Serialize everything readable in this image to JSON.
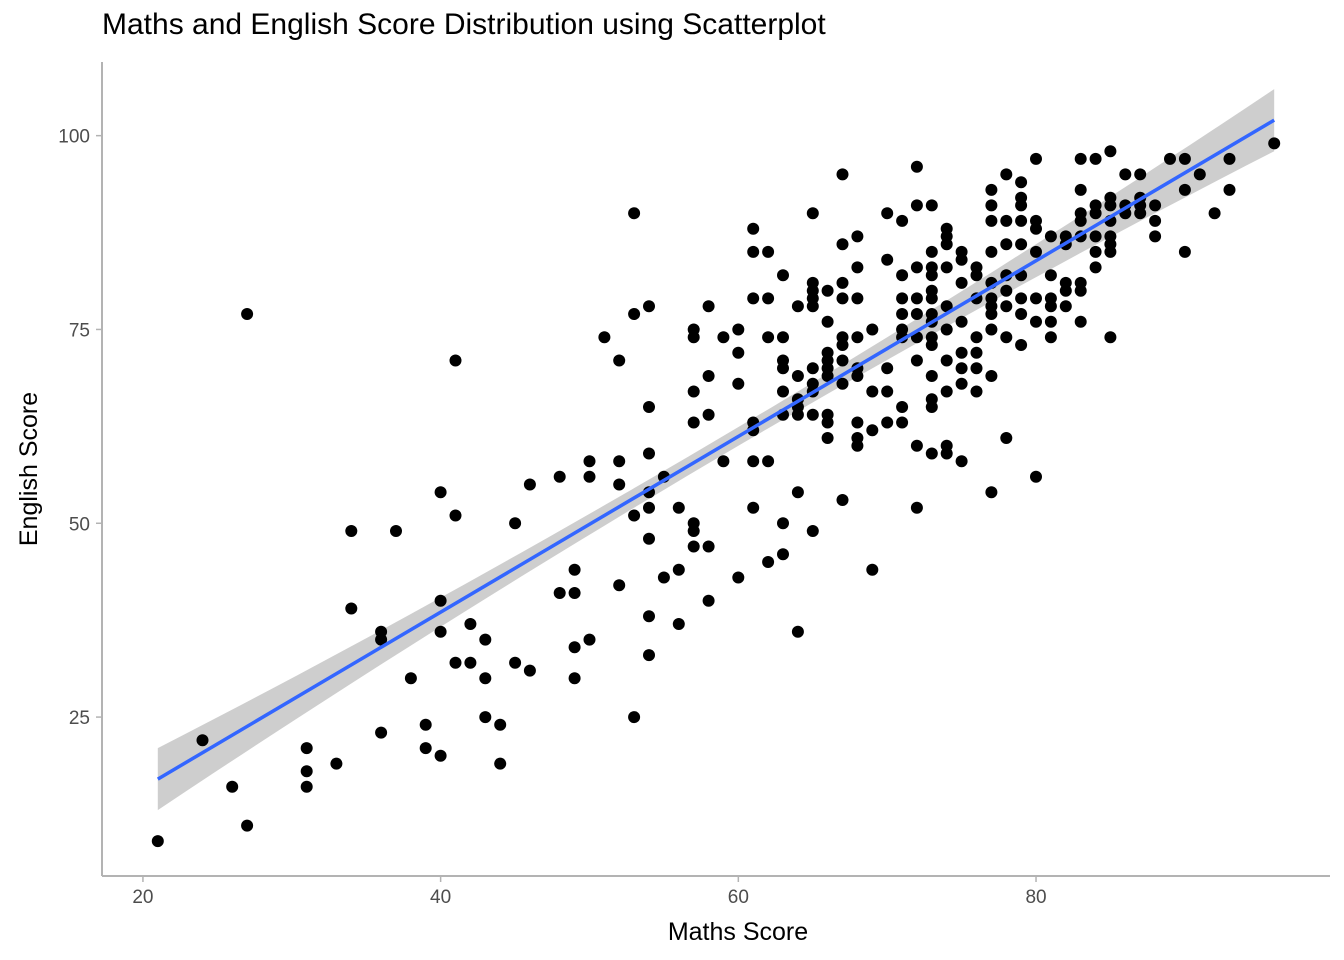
{
  "chart_data": {
    "type": "scatter",
    "title": "Maths and English Score Distribution using Scatterplot",
    "xlabel": "Maths Score",
    "ylabel": "English Score",
    "xlim": [
      17.25,
      99.75
    ],
    "ylim": [
      4.5,
      109.5
    ],
    "x_ticks": [
      20,
      40,
      60,
      80
    ],
    "y_ticks": [
      25,
      50,
      75,
      100
    ],
    "grid": false,
    "point_color": "#000000",
    "trend_line": {
      "method": "linear fit with confidence band",
      "color": "#3366FF",
      "band_color": "#BEBEBE",
      "x_start": 21,
      "y_start": 17,
      "x_end": 96,
      "y_end": 102,
      "band_halfwidth_ends": 4,
      "band_halfwidth_center": 1.2
    },
    "points": [
      [
        21,
        9
      ],
      [
        24,
        22
      ],
      [
        26,
        16
      ],
      [
        27,
        11
      ],
      [
        27,
        77
      ],
      [
        31,
        21
      ],
      [
        31,
        18
      ],
      [
        31,
        16
      ],
      [
        33,
        19
      ],
      [
        34,
        49
      ],
      [
        34,
        39
      ],
      [
        36,
        36
      ],
      [
        36,
        35
      ],
      [
        36,
        23
      ],
      [
        37,
        49
      ],
      [
        38,
        30
      ],
      [
        39,
        24
      ],
      [
        39,
        21
      ],
      [
        40,
        54
      ],
      [
        40,
        40
      ],
      [
        40,
        36
      ],
      [
        40,
        20
      ],
      [
        41,
        71
      ],
      [
        41,
        51
      ],
      [
        41,
        32
      ],
      [
        42,
        37
      ],
      [
        42,
        32
      ],
      [
        43,
        35
      ],
      [
        43,
        30
      ],
      [
        43,
        25
      ],
      [
        44,
        24
      ],
      [
        44,
        19
      ],
      [
        45,
        50
      ],
      [
        45,
        32
      ],
      [
        46,
        55
      ],
      [
        46,
        31
      ],
      [
        48,
        56
      ],
      [
        48,
        41
      ],
      [
        49,
        44
      ],
      [
        49,
        41
      ],
      [
        49,
        34
      ],
      [
        49,
        30
      ],
      [
        50,
        58
      ],
      [
        50,
        56
      ],
      [
        50,
        35
      ],
      [
        51,
        74
      ],
      [
        52,
        71
      ],
      [
        52,
        58
      ],
      [
        52,
        55
      ],
      [
        52,
        42
      ],
      [
        53,
        90
      ],
      [
        53,
        77
      ],
      [
        53,
        51
      ],
      [
        53,
        25
      ],
      [
        54,
        78
      ],
      [
        54,
        65
      ],
      [
        54,
        59
      ],
      [
        54,
        54
      ],
      [
        54,
        52
      ],
      [
        54,
        48
      ],
      [
        54,
        38
      ],
      [
        54,
        33
      ],
      [
        55,
        56
      ],
      [
        55,
        43
      ],
      [
        56,
        52
      ],
      [
        56,
        44
      ],
      [
        56,
        37
      ],
      [
        57,
        75
      ],
      [
        57,
        74
      ],
      [
        57,
        67
      ],
      [
        57,
        63
      ],
      [
        57,
        50
      ],
      [
        57,
        49
      ],
      [
        57,
        47
      ],
      [
        58,
        78
      ],
      [
        58,
        69
      ],
      [
        58,
        64
      ],
      [
        58,
        47
      ],
      [
        58,
        40
      ],
      [
        59,
        74
      ],
      [
        59,
        58
      ],
      [
        60,
        75
      ],
      [
        60,
        72
      ],
      [
        60,
        68
      ],
      [
        60,
        43
      ],
      [
        61,
        88
      ],
      [
        61,
        85
      ],
      [
        61,
        79
      ],
      [
        61,
        63
      ],
      [
        61,
        62
      ],
      [
        61,
        58
      ],
      [
        61,
        52
      ],
      [
        62,
        85
      ],
      [
        62,
        79
      ],
      [
        62,
        74
      ],
      [
        62,
        58
      ],
      [
        62,
        45
      ],
      [
        63,
        82
      ],
      [
        63,
        74
      ],
      [
        63,
        71
      ],
      [
        63,
        70
      ],
      [
        63,
        67
      ],
      [
        63,
        64
      ],
      [
        63,
        50
      ],
      [
        63,
        46
      ],
      [
        64,
        78
      ],
      [
        64,
        69
      ],
      [
        64,
        66
      ],
      [
        64,
        65
      ],
      [
        64,
        64
      ],
      [
        64,
        54
      ],
      [
        64,
        36
      ],
      [
        65,
        90
      ],
      [
        65,
        81
      ],
      [
        65,
        80
      ],
      [
        65,
        79
      ],
      [
        65,
        78
      ],
      [
        65,
        70
      ],
      [
        65,
        68
      ],
      [
        65,
        67
      ],
      [
        65,
        64
      ],
      [
        65,
        49
      ],
      [
        66,
        80
      ],
      [
        66,
        76
      ],
      [
        66,
        72
      ],
      [
        66,
        71
      ],
      [
        66,
        70
      ],
      [
        66,
        69
      ],
      [
        66,
        64
      ],
      [
        66,
        63
      ],
      [
        66,
        61
      ],
      [
        67,
        95
      ],
      [
        67,
        86
      ],
      [
        67,
        81
      ],
      [
        67,
        79
      ],
      [
        67,
        74
      ],
      [
        67,
        73
      ],
      [
        67,
        71
      ],
      [
        67,
        68
      ],
      [
        67,
        53
      ],
      [
        68,
        87
      ],
      [
        68,
        83
      ],
      [
        68,
        79
      ],
      [
        68,
        74
      ],
      [
        68,
        70
      ],
      [
        68,
        69
      ],
      [
        68,
        63
      ],
      [
        68,
        61
      ],
      [
        68,
        60
      ],
      [
        69,
        75
      ],
      [
        69,
        67
      ],
      [
        69,
        62
      ],
      [
        69,
        44
      ],
      [
        70,
        90
      ],
      [
        70,
        84
      ],
      [
        70,
        70
      ],
      [
        70,
        67
      ],
      [
        70,
        63
      ],
      [
        71,
        89
      ],
      [
        71,
        82
      ],
      [
        71,
        79
      ],
      [
        71,
        77
      ],
      [
        71,
        75
      ],
      [
        71,
        74
      ],
      [
        71,
        65
      ],
      [
        71,
        63
      ],
      [
        72,
        96
      ],
      [
        72,
        91
      ],
      [
        72,
        83
      ],
      [
        72,
        79
      ],
      [
        72,
        77
      ],
      [
        72,
        74
      ],
      [
        72,
        71
      ],
      [
        72,
        60
      ],
      [
        72,
        52
      ],
      [
        73,
        91
      ],
      [
        73,
        85
      ],
      [
        73,
        83
      ],
      [
        73,
        82
      ],
      [
        73,
        80
      ],
      [
        73,
        79
      ],
      [
        73,
        77
      ],
      [
        73,
        76
      ],
      [
        73,
        74
      ],
      [
        73,
        73
      ],
      [
        73,
        69
      ],
      [
        73,
        66
      ],
      [
        73,
        65
      ],
      [
        73,
        59
      ],
      [
        74,
        88
      ],
      [
        74,
        87
      ],
      [
        74,
        86
      ],
      [
        74,
        83
      ],
      [
        74,
        78
      ],
      [
        74,
        75
      ],
      [
        74,
        71
      ],
      [
        74,
        67
      ],
      [
        74,
        60
      ],
      [
        74,
        59
      ],
      [
        75,
        85
      ],
      [
        75,
        84
      ],
      [
        75,
        81
      ],
      [
        75,
        76
      ],
      [
        75,
        72
      ],
      [
        75,
        70
      ],
      [
        75,
        68
      ],
      [
        75,
        58
      ],
      [
        76,
        83
      ],
      [
        76,
        82
      ],
      [
        76,
        79
      ],
      [
        76,
        74
      ],
      [
        76,
        72
      ],
      [
        76,
        70
      ],
      [
        76,
        67
      ],
      [
        77,
        93
      ],
      [
        77,
        91
      ],
      [
        77,
        89
      ],
      [
        77,
        85
      ],
      [
        77,
        81
      ],
      [
        77,
        79
      ],
      [
        77,
        78
      ],
      [
        77,
        77
      ],
      [
        77,
        75
      ],
      [
        77,
        69
      ],
      [
        77,
        54
      ],
      [
        78,
        95
      ],
      [
        78,
        89
      ],
      [
        78,
        86
      ],
      [
        78,
        82
      ],
      [
        78,
        80
      ],
      [
        78,
        78
      ],
      [
        78,
        74
      ],
      [
        78,
        61
      ],
      [
        79,
        94
      ],
      [
        79,
        92
      ],
      [
        79,
        91
      ],
      [
        79,
        89
      ],
      [
        79,
        86
      ],
      [
        79,
        82
      ],
      [
        79,
        79
      ],
      [
        79,
        77
      ],
      [
        79,
        73
      ],
      [
        80,
        97
      ],
      [
        80,
        89
      ],
      [
        80,
        88
      ],
      [
        80,
        85
      ],
      [
        80,
        79
      ],
      [
        80,
        76
      ],
      [
        80,
        56
      ],
      [
        81,
        87
      ],
      [
        81,
        82
      ],
      [
        81,
        79
      ],
      [
        81,
        78
      ],
      [
        81,
        76
      ],
      [
        81,
        74
      ],
      [
        82,
        87
      ],
      [
        82,
        86
      ],
      [
        82,
        81
      ],
      [
        82,
        80
      ],
      [
        82,
        78
      ],
      [
        83,
        97
      ],
      [
        83,
        93
      ],
      [
        83,
        90
      ],
      [
        83,
        89
      ],
      [
        83,
        87
      ],
      [
        83,
        81
      ],
      [
        83,
        80
      ],
      [
        83,
        76
      ],
      [
        84,
        97
      ],
      [
        84,
        91
      ],
      [
        84,
        90
      ],
      [
        84,
        87
      ],
      [
        84,
        85
      ],
      [
        84,
        83
      ],
      [
        85,
        98
      ],
      [
        85,
        92
      ],
      [
        85,
        91
      ],
      [
        85,
        89
      ],
      [
        85,
        87
      ],
      [
        85,
        86
      ],
      [
        85,
        85
      ],
      [
        85,
        74
      ],
      [
        86,
        95
      ],
      [
        86,
        91
      ],
      [
        86,
        90
      ],
      [
        87,
        95
      ],
      [
        87,
        92
      ],
      [
        87,
        91
      ],
      [
        87,
        90
      ],
      [
        88,
        91
      ],
      [
        88,
        89
      ],
      [
        88,
        87
      ],
      [
        89,
        97
      ],
      [
        90,
        97
      ],
      [
        90,
        93
      ],
      [
        90,
        85
      ],
      [
        91,
        95
      ],
      [
        92,
        90
      ],
      [
        93,
        97
      ],
      [
        93,
        93
      ],
      [
        96,
        99
      ]
    ]
  }
}
